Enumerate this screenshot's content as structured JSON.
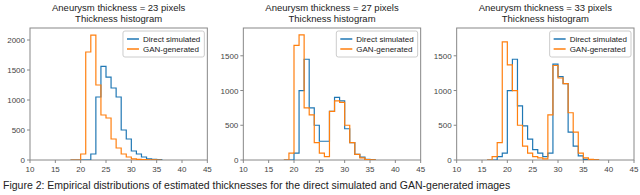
{
  "chart_data": [
    {
      "type": "step",
      "title": "Aneurysm thickness = 23 pixels",
      "subtitle": "Thickness histogram",
      "xlim": [
        10,
        45
      ],
      "xticks": [
        10,
        15,
        20,
        25,
        30,
        35,
        40,
        45
      ],
      "ylim": [
        0,
        2200
      ],
      "yticks": [
        0,
        500,
        1000,
        1500,
        2000
      ],
      "x": [
        18,
        19,
        20,
        21,
        22,
        23,
        24,
        25,
        26,
        27,
        28,
        29,
        30,
        31,
        32,
        33,
        34,
        35,
        36
      ],
      "series": [
        {
          "name": "Direct simulated",
          "color": "#1f77b4",
          "values": [
            0,
            0,
            0,
            0,
            100,
            1050,
            1560,
            1380,
            1200,
            1050,
            500,
            350,
            150,
            100,
            50,
            20,
            10,
            5,
            0
          ]
        },
        {
          "name": "GAN-generated",
          "color": "#ff7f0e",
          "values": [
            0,
            0,
            100,
            1800,
            2080,
            1250,
            750,
            700,
            350,
            200,
            100,
            50,
            20,
            10,
            5,
            2,
            1,
            0,
            0
          ]
        }
      ],
      "legend": "upper right",
      "grid": false
    },
    {
      "type": "step",
      "title": "Aneurysm thickness = 27 pixels",
      "subtitle": "Thickness histogram",
      "xlim": [
        10,
        45
      ],
      "xticks": [
        10,
        15,
        20,
        25,
        30,
        35,
        40,
        45
      ],
      "ylim": [
        0,
        1900
      ],
      "yticks": [
        0,
        500,
        1000,
        1500
      ],
      "x": [
        18,
        19,
        20,
        21,
        22,
        23,
        24,
        25,
        26,
        27,
        28,
        29,
        30,
        31,
        32,
        33,
        34,
        35,
        36
      ],
      "series": [
        {
          "name": "Direct simulated",
          "color": "#1f77b4",
          "values": [
            0,
            0,
            100,
            1000,
            1450,
            750,
            500,
            270,
            270,
            700,
            900,
            850,
            450,
            250,
            80,
            40,
            10,
            5,
            0
          ]
        },
        {
          "name": "GAN-generated",
          "color": "#ff7f0e",
          "values": [
            0,
            100,
            1650,
            1800,
            750,
            650,
            250,
            100,
            50,
            700,
            850,
            830,
            500,
            250,
            80,
            30,
            5,
            2,
            0
          ]
        }
      ],
      "legend": "upper right",
      "grid": false
    },
    {
      "type": "step",
      "title": "Aneurysm thickness = 33 pixels",
      "subtitle": "Thickness histogram",
      "xlim": [
        10,
        45
      ],
      "xticks": [
        10,
        15,
        20,
        25,
        30,
        35,
        40,
        45
      ],
      "ylim": [
        0,
        1900
      ],
      "yticks": [
        0,
        500,
        1000,
        1500
      ],
      "x": [
        16,
        17,
        18,
        19,
        20,
        21,
        22,
        23,
        24,
        25,
        26,
        27,
        28,
        29,
        30,
        31,
        32,
        33,
        34,
        35,
        36,
        37,
        38
      ],
      "series": [
        {
          "name": "Direct simulated",
          "color": "#1f77b4",
          "values": [
            0,
            0,
            50,
            100,
            1000,
            1450,
            780,
            490,
            300,
            150,
            100,
            50,
            100,
            1380,
            1200,
            1100,
            400,
            200,
            60,
            10,
            5,
            2,
            0
          ]
        },
        {
          "name": "GAN-generated",
          "color": "#ff7f0e",
          "values": [
            0,
            50,
            250,
            1700,
            1370,
            1000,
            500,
            200,
            100,
            50,
            30,
            15,
            650,
            1360,
            1180,
            1100,
            680,
            400,
            100,
            30,
            10,
            3,
            0
          ]
        }
      ],
      "legend": "upper right",
      "grid": false
    }
  ],
  "caption": "Figure 2:  Empirical distributions of estimated thicknesses for the direct simulated and GAN-generated images"
}
